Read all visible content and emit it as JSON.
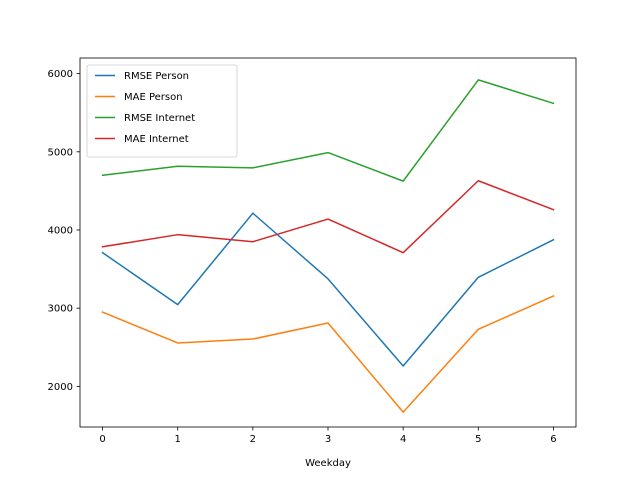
{
  "chart_data": {
    "type": "line",
    "title": "",
    "xlabel": "Weekday",
    "ylabel": "",
    "x": [
      0,
      1,
      2,
      3,
      4,
      5,
      6
    ],
    "xlim": [
      -0.3,
      6.3
    ],
    "ylim": [
      1480,
      6200
    ],
    "xticks": [
      0,
      1,
      2,
      3,
      4,
      5,
      6
    ],
    "yticks": [
      2000,
      3000,
      4000,
      5000,
      6000
    ],
    "grid": false,
    "legend_position": "upper-left",
    "series": [
      {
        "name": "RMSE Person",
        "color": "#1f77b4",
        "values": [
          3710,
          3045,
          4215,
          3375,
          2260,
          3395,
          3875
        ]
      },
      {
        "name": "MAE Person",
        "color": "#ff7f0e",
        "values": [
          2950,
          2555,
          2605,
          2810,
          1670,
          2730,
          3155
        ]
      },
      {
        "name": "RMSE Internet",
        "color": "#2ca02c",
        "values": [
          4700,
          4815,
          4795,
          4990,
          4625,
          5920,
          5620
        ]
      },
      {
        "name": "MAE Internet",
        "color": "#d62728",
        "values": [
          3785,
          3940,
          3850,
          4140,
          3710,
          4630,
          4260
        ]
      }
    ]
  }
}
